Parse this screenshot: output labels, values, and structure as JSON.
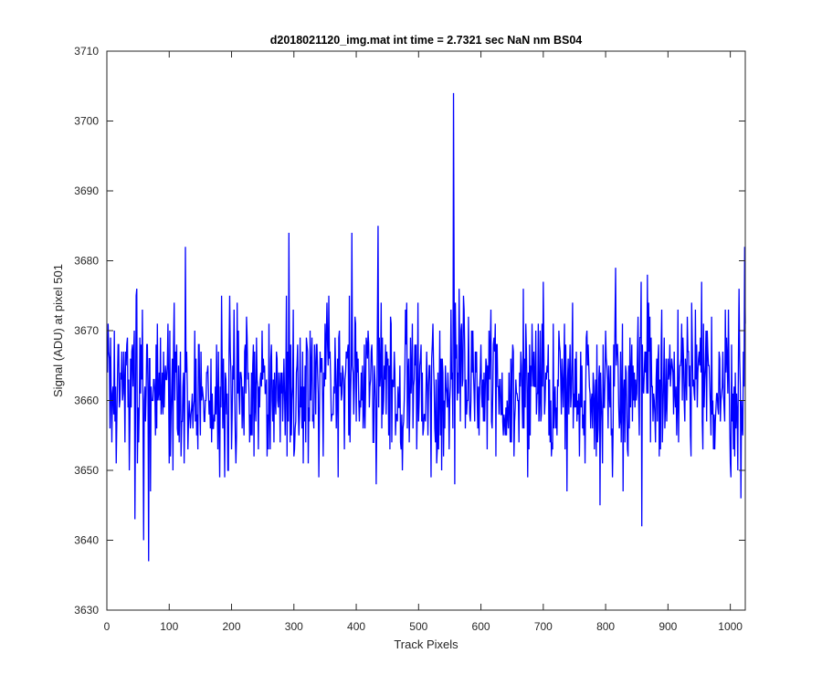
{
  "chart_data": {
    "type": "line",
    "title": "d2018021120_img.mat int time = 2.7321 sec  NaN nm BS04",
    "xlabel": "Track Pixels",
    "ylabel": "Signal (ADU) at pixel 501",
    "xlim": [
      0,
      1024
    ],
    "ylim": [
      3630,
      3710
    ],
    "xticks": [
      0,
      100,
      200,
      300,
      400,
      500,
      600,
      700,
      800,
      900,
      1000
    ],
    "yticks": [
      3630,
      3640,
      3650,
      3660,
      3670,
      3680,
      3690,
      3700,
      3710
    ],
    "grid": false,
    "legend": "none",
    "series": [
      {
        "color": "#0000ff",
        "x_start": 1,
        "x_step": 1,
        "n_points": 1024,
        "baseline_mean": 3662,
        "spread": 6,
        "notable_points": [
          {
            "x": 556,
            "y": 3704
          },
          {
            "x": 67,
            "y": 3637
          },
          {
            "x": 59,
            "y": 3640
          },
          {
            "x": 45,
            "y": 3643
          },
          {
            "x": 858,
            "y": 3642
          },
          {
            "x": 1023,
            "y": 3682
          },
          {
            "x": 816,
            "y": 3679
          },
          {
            "x": 867,
            "y": 3678
          },
          {
            "x": 435,
            "y": 3685
          },
          {
            "x": 393,
            "y": 3684
          },
          {
            "x": 292,
            "y": 3684
          },
          {
            "x": 126,
            "y": 3682
          },
          {
            "x": 1012,
            "y": 3650
          }
        ]
      }
    ]
  }
}
